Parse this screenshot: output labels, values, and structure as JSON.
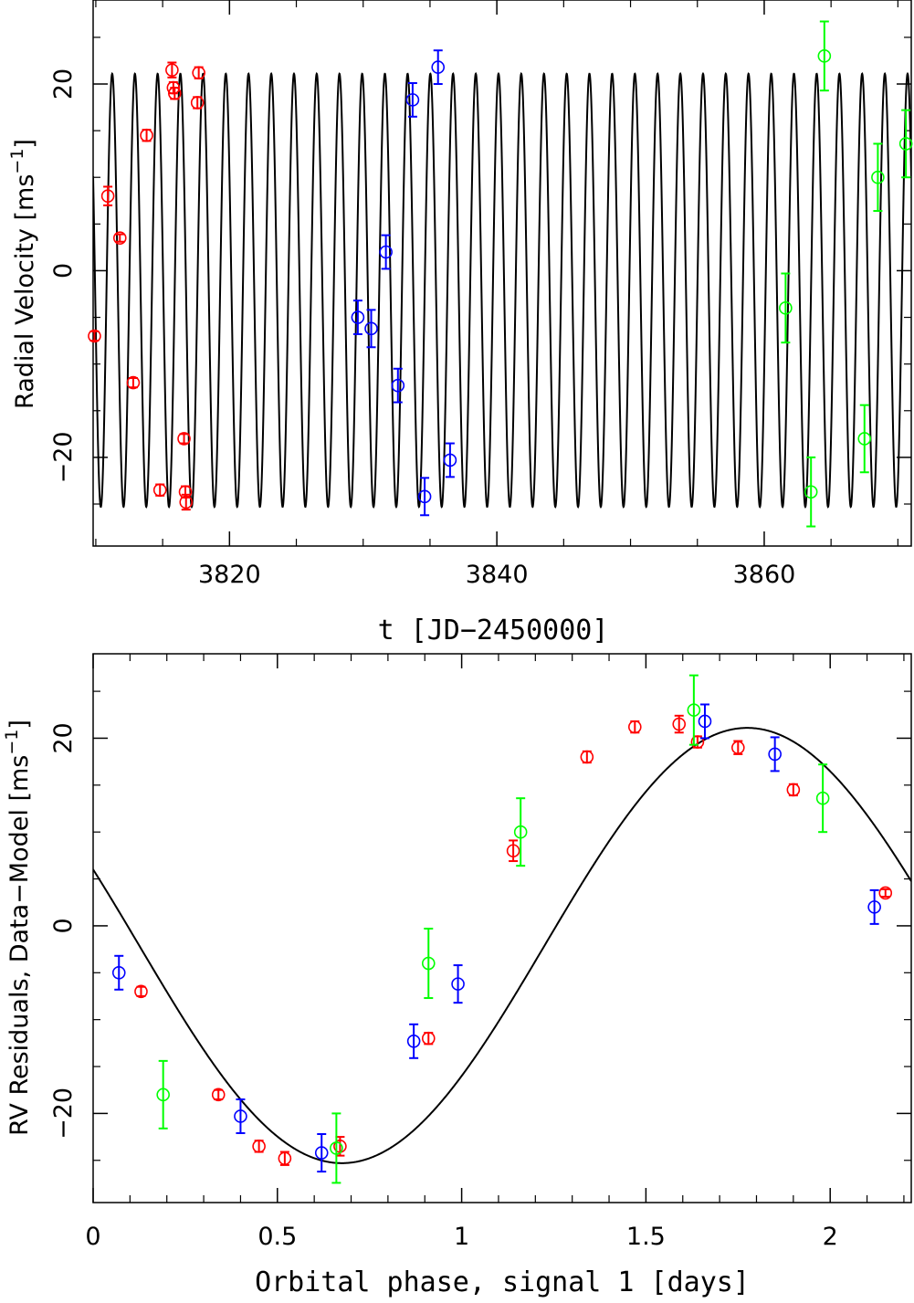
{
  "chart_data": [
    {
      "type": "scatter",
      "name": "time-series",
      "xlabel": "t [JD−2450000]",
      "ylabel": "Radial Velocity [ms",
      "ylabel_sup": "−1",
      "ylabel_end": "]",
      "xlim": [
        3809.8,
        3871
      ],
      "ylim": [
        -29.5,
        29
      ],
      "xticks": [
        3820,
        3840,
        3860
      ],
      "xtick_labels": [
        "3820",
        "3840",
        "3860"
      ],
      "yticks": [
        -20,
        0,
        20
      ],
      "ytick_labels": [
        "−20",
        "0",
        "20"
      ],
      "grid": false,
      "model": {
        "amplitude": 23.2,
        "offset": -2.1,
        "period": 1.7,
        "phase_zero": 3809.95
      },
      "series": [
        {
          "color": "#ff0000",
          "points": [
            {
              "x": 3809.9,
              "y": -7,
              "err": 0.5
            },
            {
              "x": 3810.9,
              "y": 8,
              "err": 1
            },
            {
              "x": 3811.8,
              "y": 3.5,
              "err": 0.4
            },
            {
              "x": 3812.8,
              "y": -12,
              "err": 0.5
            },
            {
              "x": 3813.8,
              "y": 14.5,
              "err": 0.6
            },
            {
              "x": 3814.8,
              "y": -23.5,
              "err": 0.6
            },
            {
              "x": 3815.7,
              "y": 21.5,
              "err": 0.8
            },
            {
              "x": 3815.8,
              "y": 19.6,
              "err": 0.6
            },
            {
              "x": 3815.9,
              "y": 19,
              "err": 0.6
            },
            {
              "x": 3816.6,
              "y": -18,
              "err": 0.5
            },
            {
              "x": 3816.7,
              "y": -23.7,
              "err": 0.6
            },
            {
              "x": 3816.75,
              "y": -24.8,
              "err": 0.8
            },
            {
              "x": 3817.6,
              "y": 18,
              "err": 0.6
            },
            {
              "x": 3817.7,
              "y": 21.2,
              "err": 0.6
            }
          ]
        },
        {
          "color": "#0000ff",
          "points": [
            {
              "x": 3829.6,
              "y": -5,
              "err": 1.8
            },
            {
              "x": 3830.6,
              "y": -6.2,
              "err": 2
            },
            {
              "x": 3831.7,
              "y": 2,
              "err": 1.8
            },
            {
              "x": 3832.6,
              "y": -12.3,
              "err": 1.8
            },
            {
              "x": 3833.7,
              "y": 18.3,
              "err": 1.8
            },
            {
              "x": 3834.6,
              "y": -24.2,
              "err": 2
            },
            {
              "x": 3835.6,
              "y": 21.8,
              "err": 1.8
            },
            {
              "x": 3836.5,
              "y": -20.3,
              "err": 1.8
            }
          ]
        },
        {
          "color": "#00ff00",
          "points": [
            {
              "x": 3861.6,
              "y": -4,
              "err": 3.7
            },
            {
              "x": 3863.5,
              "y": -23.7,
              "err": 3.7
            },
            {
              "x": 3864.5,
              "y": 23,
              "err": 3.7
            },
            {
              "x": 3867.5,
              "y": -18,
              "err": 3.6
            },
            {
              "x": 3868.5,
              "y": 10,
              "err": 3.6
            },
            {
              "x": 3870.6,
              "y": 13.6,
              "err": 3.6
            }
          ]
        }
      ]
    },
    {
      "type": "scatter",
      "name": "phase-folded",
      "title": "t [JD−2450000]",
      "xlabel": "Orbital phase, signal 1 [days]",
      "ylabel": "RV Residuals, Data−Model [ms",
      "ylabel_sup": "−1",
      "ylabel_end": "]",
      "xlim": [
        0,
        2.22
      ],
      "ylim": [
        -29.5,
        29
      ],
      "xticks": [
        0,
        0.5,
        1,
        1.5,
        2
      ],
      "xtick_labels": [
        "0",
        "0.5",
        "1",
        "1.5",
        "2"
      ],
      "yticks": [
        -20,
        0,
        20
      ],
      "ytick_labels": [
        "−20",
        "0",
        "20"
      ],
      "grid": false,
      "model": {
        "amplitude": 23.2,
        "offset": -2.1,
        "period": 2.2,
        "phase_zero": 0.125
      },
      "series": [
        {
          "color": "#ff0000",
          "points": [
            {
              "x": 0.13,
              "y": -7,
              "err": 0.5
            },
            {
              "x": 0.34,
              "y": -18,
              "err": 0.5
            },
            {
              "x": 0.45,
              "y": -23.5,
              "err": 0.6
            },
            {
              "x": 0.52,
              "y": -24.8,
              "err": 0.7
            },
            {
              "x": 0.67,
              "y": -23.5,
              "err": 1
            },
            {
              "x": 0.91,
              "y": -12,
              "err": 0.6
            },
            {
              "x": 1.14,
              "y": 8,
              "err": 1.1
            },
            {
              "x": 1.34,
              "y": 18,
              "err": 0.6
            },
            {
              "x": 1.47,
              "y": 21.2,
              "err": 0.6
            },
            {
              "x": 1.59,
              "y": 21.5,
              "err": 0.9
            },
            {
              "x": 1.64,
              "y": 19.6,
              "err": 0.6
            },
            {
              "x": 1.75,
              "y": 19,
              "err": 0.7
            },
            {
              "x": 1.9,
              "y": 14.5,
              "err": 0.6
            },
            {
              "x": 2.15,
              "y": 3.5,
              "err": 0.4
            }
          ]
        },
        {
          "color": "#0000ff",
          "points": [
            {
              "x": 0.07,
              "y": -5,
              "err": 1.8
            },
            {
              "x": 0.4,
              "y": -20.3,
              "err": 1.8
            },
            {
              "x": 0.62,
              "y": -24.2,
              "err": 2
            },
            {
              "x": 0.87,
              "y": -12.3,
              "err": 1.8
            },
            {
              "x": 0.99,
              "y": -6.2,
              "err": 2
            },
            {
              "x": 1.66,
              "y": 21.8,
              "err": 1.8
            },
            {
              "x": 1.85,
              "y": 18.3,
              "err": 1.8
            },
            {
              "x": 2.12,
              "y": 2,
              "err": 1.8
            }
          ]
        },
        {
          "color": "#00ff00",
          "points": [
            {
              "x": 0.19,
              "y": -18,
              "err": 3.6
            },
            {
              "x": 0.66,
              "y": -23.7,
              "err": 3.7
            },
            {
              "x": 0.91,
              "y": -4,
              "err": 3.7
            },
            {
              "x": 1.16,
              "y": 10,
              "err": 3.6
            },
            {
              "x": 1.63,
              "y": 23,
              "err": 3.7
            },
            {
              "x": 1.98,
              "y": 13.6,
              "err": 3.6
            }
          ]
        }
      ]
    }
  ]
}
